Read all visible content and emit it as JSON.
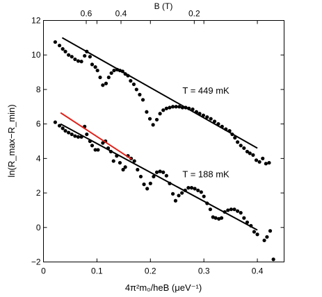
{
  "chart_data": {
    "type": "scatter",
    "title": "",
    "xlabel": "4π²m₀/heB (μeV⁻¹)",
    "ylabel": "ln(R_max−R_min)",
    "top_axis_label": "B (T)",
    "xlim": [
      0,
      0.45
    ],
    "ylim": [
      -2,
      12
    ],
    "x_ticks": [
      0,
      0.1,
      0.2,
      0.3,
      0.4
    ],
    "x_tick_labels": [
      "0",
      "0.1",
      "0.2",
      "0.3",
      "0.4"
    ],
    "y_ticks": [
      -2,
      0,
      2,
      4,
      6,
      8,
      10,
      12
    ],
    "y_tick_labels": [
      "−2",
      "0",
      "2",
      "4",
      "6",
      "8",
      "10",
      "12"
    ],
    "top_ticks": [
      {
        "x": 0.08,
        "label": "0.6"
      },
      {
        "x": 0.145,
        "label": "0.4"
      },
      {
        "x": 0.282,
        "label": "0.2"
      }
    ],
    "grid": false,
    "series": [
      {
        "id": "t449",
        "color": "#000000",
        "points": [
          [
            0.022,
            10.75
          ],
          [
            0.03,
            10.55
          ],
          [
            0.036,
            10.35
          ],
          [
            0.041,
            10.2
          ],
          [
            0.047,
            10.0
          ],
          [
            0.053,
            9.9
          ],
          [
            0.059,
            9.75
          ],
          [
            0.065,
            9.65
          ],
          [
            0.071,
            9.62
          ],
          [
            0.077,
            9.95
          ],
          [
            0.081,
            10.2
          ],
          [
            0.087,
            9.9
          ],
          [
            0.091,
            9.45
          ],
          [
            0.097,
            9.3
          ],
          [
            0.101,
            9.1
          ],
          [
            0.106,
            8.7
          ],
          [
            0.111,
            8.25
          ],
          [
            0.117,
            8.35
          ],
          [
            0.122,
            8.7
          ],
          [
            0.127,
            8.95
          ],
          [
            0.132,
            9.1
          ],
          [
            0.138,
            9.15
          ],
          [
            0.143,
            9.1
          ],
          [
            0.148,
            9.05
          ],
          [
            0.153,
            8.9
          ],
          [
            0.158,
            8.8
          ],
          [
            0.163,
            8.5
          ],
          [
            0.169,
            8.3
          ],
          [
            0.174,
            8.0
          ],
          [
            0.18,
            7.7
          ],
          [
            0.186,
            7.4
          ],
          [
            0.193,
            6.7
          ],
          [
            0.199,
            6.3
          ],
          [
            0.205,
            5.95
          ],
          [
            0.212,
            6.25
          ],
          [
            0.218,
            6.6
          ],
          [
            0.224,
            6.8
          ],
          [
            0.23,
            6.9
          ],
          [
            0.236,
            6.95
          ],
          [
            0.242,
            7.0
          ],
          [
            0.248,
            7.0
          ],
          [
            0.254,
            7.0
          ],
          [
            0.26,
            6.95
          ],
          [
            0.266,
            6.95
          ],
          [
            0.272,
            6.9
          ],
          [
            0.279,
            6.85
          ],
          [
            0.286,
            6.7
          ],
          [
            0.292,
            6.6
          ],
          [
            0.299,
            6.5
          ],
          [
            0.306,
            6.4
          ],
          [
            0.313,
            6.3
          ],
          [
            0.32,
            6.15
          ],
          [
            0.327,
            6.0
          ],
          [
            0.334,
            5.85
          ],
          [
            0.341,
            5.7
          ],
          [
            0.348,
            5.6
          ],
          [
            0.353,
            5.4
          ],
          [
            0.358,
            5.2
          ],
          [
            0.363,
            4.95
          ],
          [
            0.369,
            4.75
          ],
          [
            0.375,
            4.6
          ],
          [
            0.381,
            4.4
          ],
          [
            0.386,
            4.3
          ],
          [
            0.392,
            4.2
          ],
          [
            0.398,
            3.9
          ],
          [
            0.404,
            3.8
          ],
          [
            0.41,
            4.0
          ],
          [
            0.416,
            3.7
          ],
          [
            0.422,
            3.75
          ]
        ],
        "fit": [
          [
            0.035,
            11.0
          ],
          [
            0.4,
            4.6
          ]
        ],
        "fit_color": "#000000",
        "label": "T = 449 mK",
        "label_x": 0.26,
        "label_y": 7.75
      },
      {
        "id": "t188",
        "color": "#000000",
        "points": [
          [
            0.022,
            6.1
          ],
          [
            0.03,
            5.9
          ],
          [
            0.036,
            5.75
          ],
          [
            0.041,
            5.6
          ],
          [
            0.047,
            5.5
          ],
          [
            0.053,
            5.4
          ],
          [
            0.059,
            5.3
          ],
          [
            0.065,
            5.25
          ],
          [
            0.071,
            5.25
          ],
          [
            0.077,
            5.85
          ],
          [
            0.081,
            5.4
          ],
          [
            0.087,
            5.0
          ],
          [
            0.091,
            4.75
          ],
          [
            0.097,
            4.5
          ],
          [
            0.102,
            4.5
          ],
          [
            0.111,
            4.9
          ],
          [
            0.116,
            5.0
          ],
          [
            0.121,
            4.6
          ],
          [
            0.126,
            4.4
          ],
          [
            0.131,
            3.85
          ],
          [
            0.137,
            4.15
          ],
          [
            0.143,
            3.75
          ],
          [
            0.149,
            3.35
          ],
          [
            0.153,
            3.5
          ],
          [
            0.158,
            4.15
          ],
          [
            0.164,
            4.0
          ],
          [
            0.17,
            3.85
          ],
          [
            0.176,
            3.35
          ],
          [
            0.182,
            2.95
          ],
          [
            0.188,
            2.5
          ],
          [
            0.194,
            2.25
          ],
          [
            0.2,
            2.55
          ],
          [
            0.206,
            2.95
          ],
          [
            0.212,
            3.2
          ],
          [
            0.218,
            3.25
          ],
          [
            0.224,
            3.2
          ],
          [
            0.23,
            3.0
          ],
          [
            0.236,
            2.55
          ],
          [
            0.242,
            1.95
          ],
          [
            0.247,
            1.55
          ],
          [
            0.253,
            1.85
          ],
          [
            0.259,
            2.0
          ],
          [
            0.265,
            2.15
          ],
          [
            0.271,
            2.3
          ],
          [
            0.277,
            2.3
          ],
          [
            0.283,
            2.25
          ],
          [
            0.289,
            2.15
          ],
          [
            0.295,
            2.05
          ],
          [
            0.3,
            1.8
          ],
          [
            0.306,
            1.4
          ],
          [
            0.312,
            1.05
          ],
          [
            0.317,
            0.6
          ],
          [
            0.322,
            0.55
          ],
          [
            0.328,
            0.5
          ],
          [
            0.333,
            0.55
          ],
          [
            0.339,
            0.9
          ],
          [
            0.345,
            1.0
          ],
          [
            0.351,
            1.05
          ],
          [
            0.357,
            1.05
          ],
          [
            0.363,
            0.95
          ],
          [
            0.369,
            0.85
          ],
          [
            0.375,
            0.55
          ],
          [
            0.381,
            0.3
          ],
          [
            0.388,
            0.1
          ],
          [
            0.394,
            -0.25
          ],
          [
            0.4,
            -0.4
          ],
          [
            0.413,
            -0.75
          ],
          [
            0.418,
            -0.55
          ],
          [
            0.424,
            -0.2
          ],
          [
            0.43,
            -1.85
          ]
        ],
        "fit": [
          [
            0.032,
            6.0
          ],
          [
            0.4,
            -0.15
          ]
        ],
        "fit_color": "#000000",
        "extra_fit": [
          [
            0.032,
            6.65
          ],
          [
            0.165,
            3.95
          ]
        ],
        "extra_fit_color": "#e0221b",
        "label": "T = 188 mK",
        "label_x": 0.26,
        "label_y": 2.9
      }
    ]
  }
}
